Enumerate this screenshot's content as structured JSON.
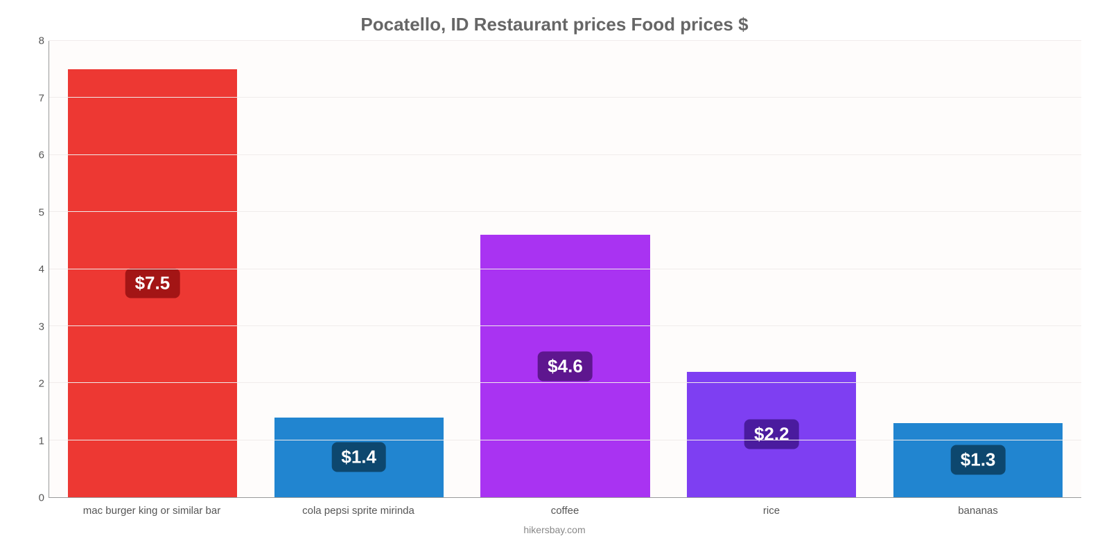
{
  "chart": {
    "type": "bar",
    "title": "Pocatello, ID Restaurant prices Food prices $",
    "title_fontsize": 26,
    "title_color": "#666666",
    "footer": "hikersbay.com",
    "footer_color": "#888888",
    "background_color": "#fefcfb",
    "grid_color": "#f0eceb",
    "axis_line_color": "#999999",
    "tick_font_color": "#555555",
    "tick_fontsize": 15,
    "ylim": [
      0,
      8
    ],
    "ytick_step": 1,
    "yticks": [
      0,
      1,
      2,
      3,
      4,
      5,
      6,
      7,
      8
    ],
    "bar_width_pct": 82,
    "data_label_fontsize": 26,
    "data_label_text_color": "#ffffff",
    "categories": [
      "mac burger king or similar bar",
      "cola pepsi sprite mirinda",
      "coffee",
      "rice",
      "bananas"
    ],
    "values": [
      7.5,
      1.4,
      4.6,
      2.2,
      1.3
    ],
    "value_labels": [
      "$7.5",
      "$1.4",
      "$4.6",
      "$2.2",
      "$1.3"
    ],
    "bar_colors": [
      "#ed3833",
      "#2185d0",
      "#a933f2",
      "#7e3ff2",
      "#2185d0"
    ],
    "label_bg_colors": [
      "#a31515",
      "#0d476e",
      "#5e168f",
      "#4a1b9e",
      "#0d476e"
    ]
  }
}
